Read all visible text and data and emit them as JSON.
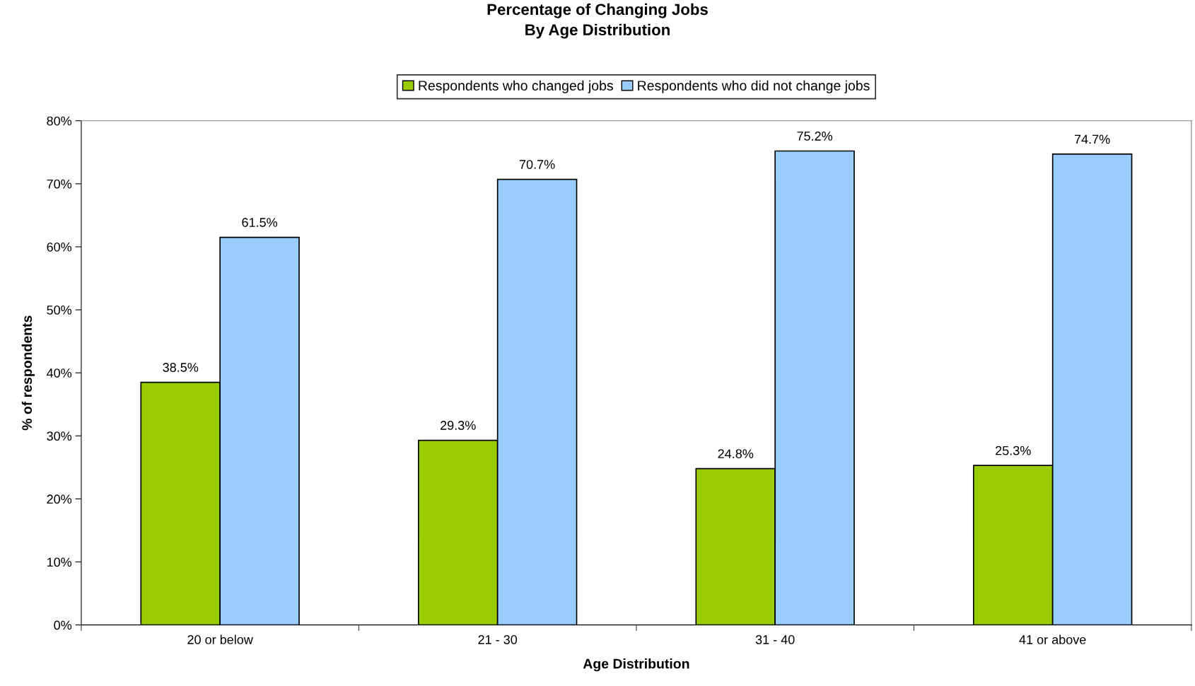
{
  "chart_data": {
    "type": "bar",
    "title": "Percentage of Changing Jobs\nBy Age Distribution",
    "xlabel": "Age Distribution",
    "ylabel": "% of respondents",
    "categories": [
      "20 or below",
      "21 - 30",
      "31 - 40",
      "41 or above"
    ],
    "series": [
      {
        "name": "Respondents who changed jobs",
        "color": "#99cc00",
        "values": [
          38.5,
          29.3,
          24.8,
          25.3
        ],
        "value_labels": [
          "38.5%",
          "29.3%",
          "24.8%",
          "25.3%"
        ]
      },
      {
        "name": "Respondents who did not change jobs",
        "color": "#99ccff",
        "values": [
          61.5,
          70.7,
          75.2,
          74.7
        ],
        "value_labels": [
          "61.5%",
          "70.7%",
          "75.2%",
          "74.7%"
        ]
      }
    ],
    "ylim": [
      0,
      80
    ],
    "yticks": [
      {
        "value": 0,
        "label": "0%"
      },
      {
        "value": 10,
        "label": "10%"
      },
      {
        "value": 20,
        "label": "20%"
      },
      {
        "value": 30,
        "label": "30%"
      },
      {
        "value": 40,
        "label": "40%"
      },
      {
        "value": 50,
        "label": "50%"
      },
      {
        "value": 60,
        "label": "60%"
      },
      {
        "value": 70,
        "label": "70%"
      },
      {
        "value": 80,
        "label": "80%"
      }
    ],
    "legend": "top",
    "grid": false
  }
}
